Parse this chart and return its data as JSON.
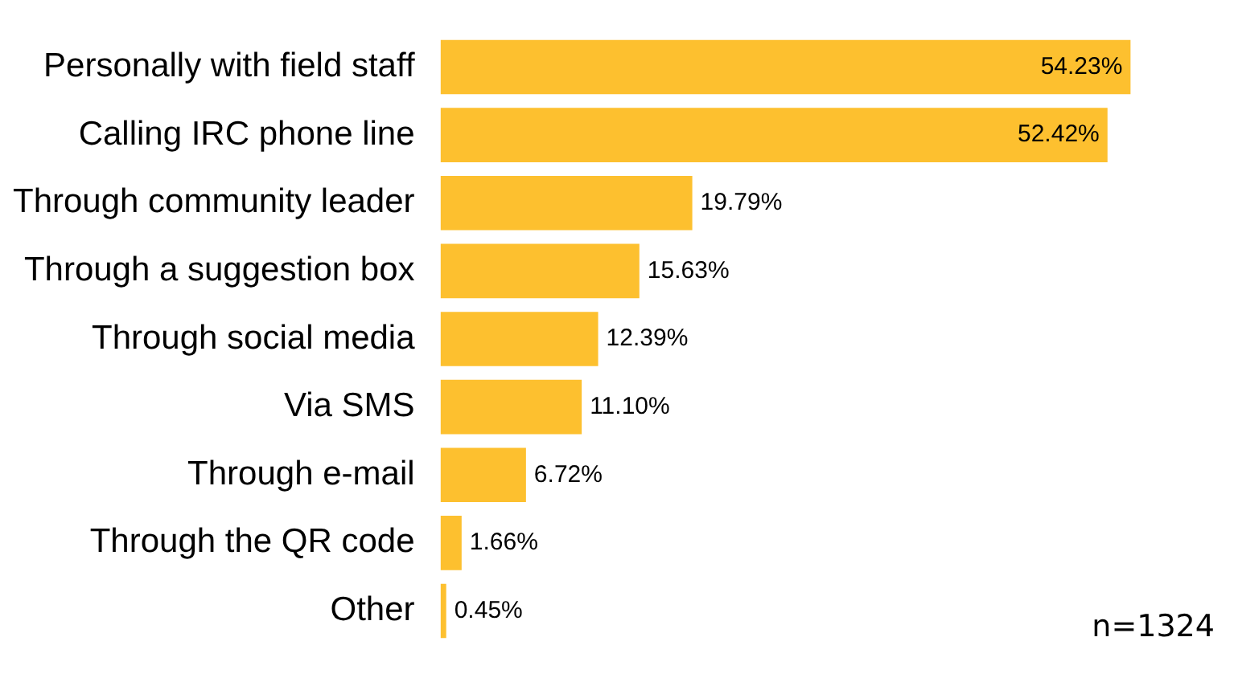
{
  "chart_data": {
    "type": "bar",
    "orientation": "horizontal",
    "categories": [
      "Personally with field staff",
      "Calling IRC phone line",
      "Through community leader",
      "Through a suggestion box",
      "Through social media",
      "Via SMS",
      "Through e-mail",
      "Through the QR code",
      "Other"
    ],
    "values": [
      54.23,
      52.42,
      19.79,
      15.63,
      12.39,
      11.1,
      6.72,
      1.66,
      0.45
    ],
    "value_labels": [
      "54.23%",
      "52.42%",
      "19.79%",
      "15.63%",
      "12.39%",
      "11.10%",
      "6.72%",
      "1.66%",
      "0.45%"
    ],
    "color": "#fdc02f",
    "grid": false,
    "legend": false,
    "tick_labels": "y",
    "annotations": [
      "n=1324"
    ]
  }
}
